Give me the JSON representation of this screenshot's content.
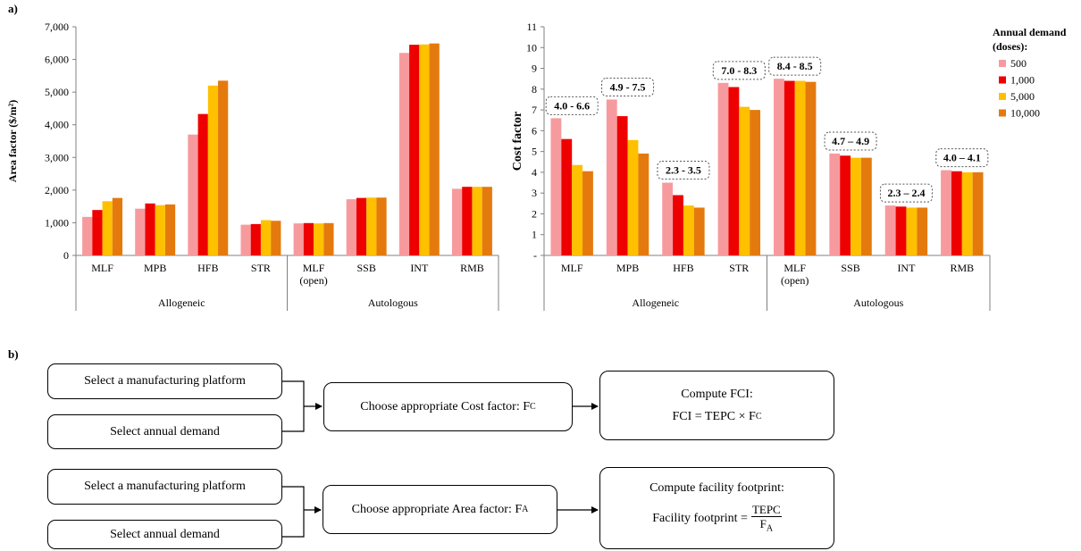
{
  "panel_a_label": "a)",
  "panel_b_label": "b)",
  "legend": {
    "title_line1": "Annual demand",
    "title_line2": "(doses):"
  },
  "colors": {
    "s500": "#f79a9e",
    "s1000": "#ee0000",
    "s5000": "#ffc000",
    "s10000": "#e47a0e",
    "axis": "#808080"
  },
  "chart_data": [
    {
      "type": "bar",
      "ylabel": "Area factor ($/m²)",
      "ylim": [
        0,
        7000
      ],
      "yticks": [
        0,
        1000,
        2000,
        3000,
        4000,
        5000,
        6000,
        7000
      ],
      "ytick_labels": [
        "0",
        "1,000",
        "2,000",
        "3,000",
        "4,000",
        "5,000",
        "6,000",
        "7,000"
      ],
      "categories": [
        "MLF",
        "MPB",
        "HFB",
        "STR",
        "MLF (open)",
        "SSB",
        "INT",
        "RMB"
      ],
      "groups": [
        {
          "label": "Allogeneic",
          "count": 4
        },
        {
          "label": "Autologous",
          "count": 4
        }
      ],
      "series": [
        {
          "name": "500",
          "values": [
            1180,
            1430,
            3700,
            940,
            980,
            1720,
            6200,
            2040
          ]
        },
        {
          "name": "1,000",
          "values": [
            1390,
            1590,
            4330,
            960,
            990,
            1760,
            6450,
            2100
          ]
        },
        {
          "name": "5,000",
          "values": [
            1660,
            1540,
            5200,
            1080,
            980,
            1770,
            6460,
            2100
          ]
        },
        {
          "name": "10,000",
          "values": [
            1760,
            1560,
            5350,
            1060,
            990,
            1770,
            6490,
            2100
          ]
        }
      ],
      "grid": false
    },
    {
      "type": "bar",
      "ylabel": "Cost factor",
      "ylim": [
        0,
        11
      ],
      "yticks": [
        0,
        1,
        2,
        3,
        4,
        5,
        6,
        7,
        8,
        9,
        10,
        11
      ],
      "ytick_labels": [
        "-",
        "1",
        "2",
        "3",
        "4",
        "5",
        "6",
        "7",
        "8",
        "9",
        "10",
        "11"
      ],
      "categories": [
        "MLF",
        "MPB",
        "HFB",
        "STR",
        "MLF (open)",
        "SSB",
        "INT",
        "RMB"
      ],
      "groups": [
        {
          "label": "Allogeneic",
          "count": 4
        },
        {
          "label": "Autologous",
          "count": 4
        }
      ],
      "series": [
        {
          "name": "500",
          "values": [
            6.6,
            7.5,
            3.5,
            8.3,
            8.5,
            4.9,
            2.4,
            4.1
          ]
        },
        {
          "name": "1,000",
          "values": [
            5.6,
            6.7,
            2.9,
            8.1,
            8.4,
            4.8,
            2.35,
            4.05
          ]
        },
        {
          "name": "5,000",
          "values": [
            4.35,
            5.55,
            2.4,
            7.15,
            8.4,
            4.7,
            2.3,
            4.0
          ]
        },
        {
          "name": "10,000",
          "values": [
            4.05,
            4.9,
            2.3,
            7.0,
            8.35,
            4.7,
            2.3,
            4.0
          ]
        }
      ],
      "annotations": [
        "4.0 - 6.6",
        "4.9 - 7.5",
        "2.3 - 3.5",
        "7.0 - 8.3",
        "8.4 - 8.5",
        "4.7 – 4.9",
        "2.3 – 2.4",
        "4.0 – 4.1"
      ],
      "legend": "right",
      "grid": false
    }
  ],
  "flow": {
    "row1": {
      "platform": "Select a manufacturing  platform",
      "demand": "Select annual  demand",
      "choose_prefix": "Choose appropriate  Cost factor: F",
      "choose_sub": "C",
      "compute_title": "Compute  FCI:",
      "formula_prefix": "FCI = TEPC  ×  F",
      "formula_sub": "C"
    },
    "row2": {
      "platform": "Select a manufacturing  platform",
      "demand": "Select annual  demand",
      "choose_prefix": "Choose appropriate  Area factor: F",
      "choose_sub": "A",
      "compute_title": "Compute  facility footprint:",
      "formula_prefix": "Facility footprint =",
      "frac_num": "TEPC",
      "frac_den_prefix": "F",
      "frac_den_sub": "A"
    }
  }
}
